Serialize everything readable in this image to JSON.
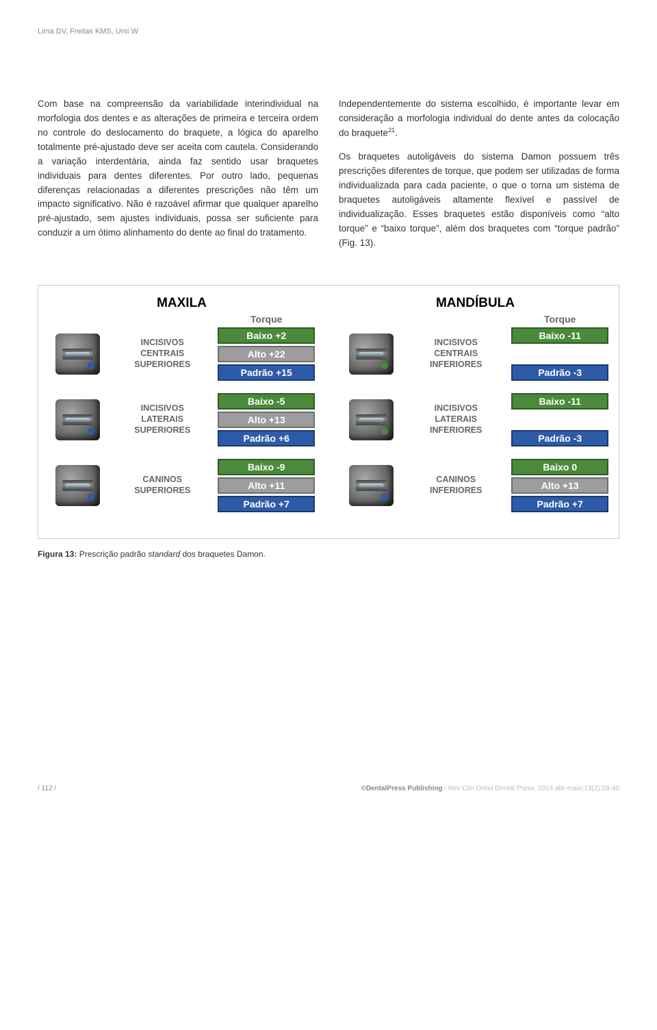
{
  "header": {
    "authors": "Lima DV, Freitas KMS, Ursi W"
  },
  "text": {
    "col1": "Com base na compreensão da variabilidade interindividual na morfologia dos dentes e as alterações de primeira e terceira ordem no controle do deslocamento do braquete, a lógica do aparelho totalmente pré-ajustado deve ser aceita com cautela. Considerando a variação interdentária, ainda faz sentido usar braquetes individuais para dentes diferentes. Por outro lado, pequenas diferenças relacionadas a diferentes prescrições não têm um impacto significativo. Não é razoável afirmar que qualquer aparelho pré-ajustado, sem ajustes individuais, possa ser suficiente para conduzir a um ótimo alinhamento do dente ao final do tratamento.",
    "col2_a": "Independentemente do sistema escolhido, é importante levar em consideração a morfologia individual do dente antes da colocação do braquete",
    "col2_sup": "21",
    "col2_b": ".",
    "col2_c": "Os braquetes autoligáveis do sistema Damon possuem três prescrições diferentes de torque, que podem ser utilizadas de forma individualizada para cada paciente, o que o torna um sistema de braquetes autoligáveis altamente flexível e passível de individualização. Esses braquetes estão disponíveis como “alto torque” e “baixo torque”, além dos braquetes com “torque padrão” (Fig. 13)."
  },
  "figure": {
    "panels": [
      {
        "title": "MAXILA",
        "rows": [
          {
            "label_lines": [
              "INCISIVOS",
              "CENTRAIS",
              "SUPERIORES"
            ],
            "dot": "#2e5ba8",
            "bars": [
              {
                "text": "Baixo +2",
                "bg": "#4a8a3a",
                "border": "#2e5a26"
              },
              {
                "text": "Alto +22",
                "bg": "#9d9d9d",
                "border": "#6e6e6e"
              },
              {
                "text": "Padrão +15",
                "bg": "#2e5ba8",
                "border": "#1a3a70"
              }
            ]
          },
          {
            "label_lines": [
              "INCISIVOS",
              "LATERAIS",
              "SUPERIORES"
            ],
            "dot": "#2e5ba8",
            "bars": [
              {
                "text": "Baixo -5",
                "bg": "#4a8a3a",
                "border": "#2e5a26"
              },
              {
                "text": "Alto +13",
                "bg": "#9d9d9d",
                "border": "#6e6e6e"
              },
              {
                "text": "Padrão +6",
                "bg": "#2e5ba8",
                "border": "#1a3a70"
              }
            ]
          },
          {
            "label_lines": [
              "CANINOS",
              "SUPERIORES"
            ],
            "dot": "#2e5ba8",
            "bars": [
              {
                "text": "Baixo -9",
                "bg": "#4a8a3a",
                "border": "#2e5a26"
              },
              {
                "text": "Alto +11",
                "bg": "#9d9d9d",
                "border": "#6e6e6e"
              },
              {
                "text": "Padrão +7",
                "bg": "#2e5ba8",
                "border": "#1a3a70"
              }
            ]
          }
        ]
      },
      {
        "title": "MANDÍBULA",
        "rows": [
          {
            "label_lines": [
              "INCISIVOS",
              "CENTRAIS",
              "INFERIORES"
            ],
            "dot": "#4a8a3a",
            "bars": [
              {
                "text": "Baixo -11",
                "bg": "#4a8a3a",
                "border": "#2e5a26"
              },
              {
                "text": "",
                "bg": "transparent",
                "border": "transparent"
              },
              {
                "text": "Padrão -3",
                "bg": "#2e5ba8",
                "border": "#1a3a70"
              }
            ]
          },
          {
            "label_lines": [
              "INCISIVOS",
              "LATERAIS",
              "INFERIORES"
            ],
            "dot": "#4a8a3a",
            "bars": [
              {
                "text": "Baixo -11",
                "bg": "#4a8a3a",
                "border": "#2e5a26"
              },
              {
                "text": "",
                "bg": "transparent",
                "border": "transparent"
              },
              {
                "text": "Padrão -3",
                "bg": "#2e5ba8",
                "border": "#1a3a70"
              }
            ]
          },
          {
            "label_lines": [
              "CANINOS",
              "INFERIORES"
            ],
            "dot": "#2e5ba8",
            "bars": [
              {
                "text": "Baixo 0",
                "bg": "#4a8a3a",
                "border": "#2e5a26"
              },
              {
                "text": "Alto +13",
                "bg": "#9d9d9d",
                "border": "#6e6e6e"
              },
              {
                "text": "Padrão +7",
                "bg": "#2e5ba8",
                "border": "#1a3a70"
              }
            ]
          }
        ]
      }
    ],
    "torque_header": "Torque",
    "caption_bold": "Figura 13:",
    "caption_text": " Prescrição padrão ",
    "caption_italic": "standard",
    "caption_text2": " dos braquetes Damon."
  },
  "footer": {
    "page": "/ 112 /",
    "pub": "©DentalPress Publishing",
    "sep": " / ",
    "ref": "Rev Clin Ortod Dental Press. 2014 abr-maio;13(2):28-40"
  }
}
